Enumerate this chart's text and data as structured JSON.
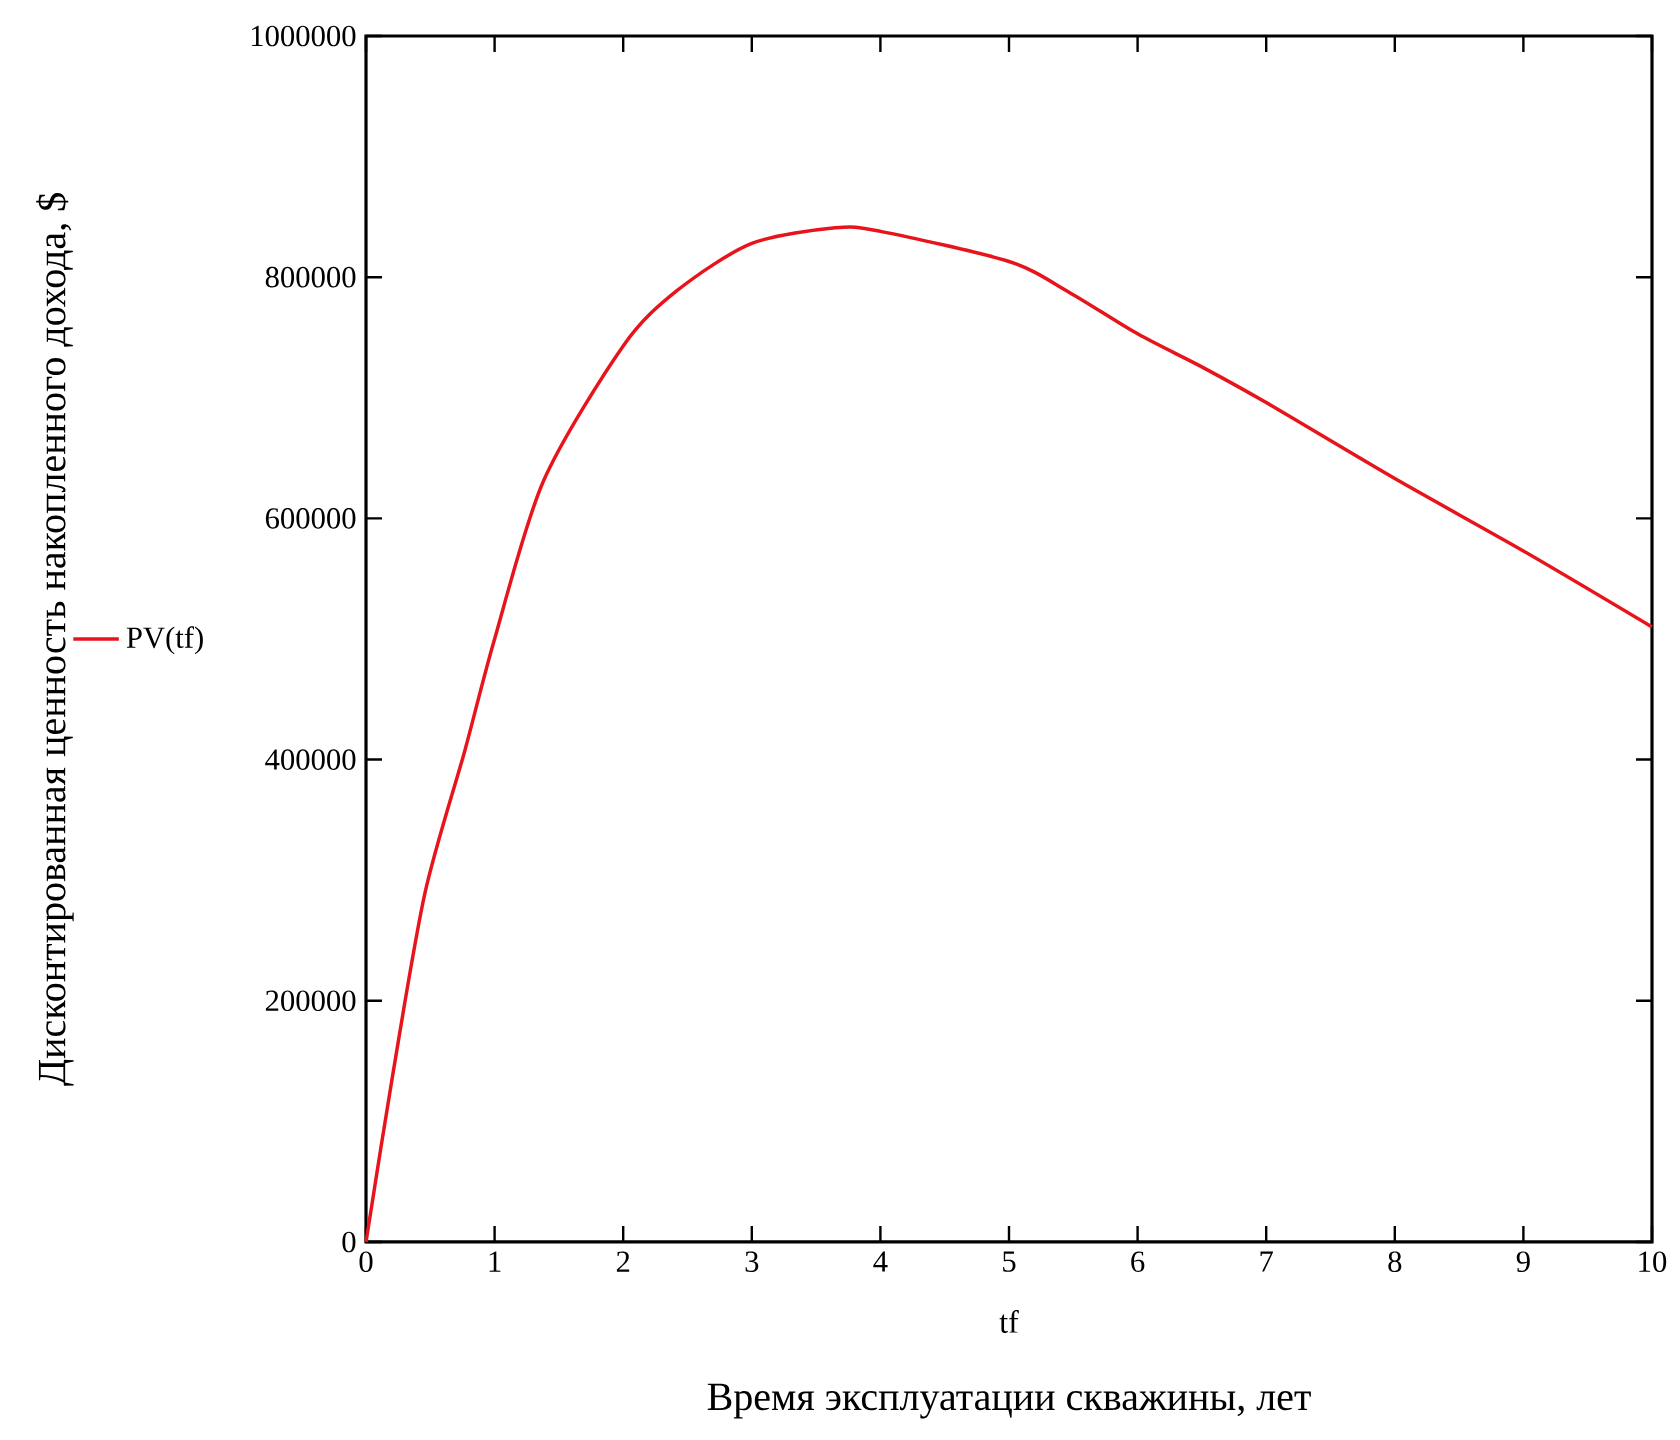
{
  "chart_data": {
    "type": "line",
    "xlabel": "tf",
    "ylabel": "Дисконтированная ценность накопленного дохода, $",
    "annotations": [
      "Время эксплуатации скважины, лет"
    ],
    "x": [
      0,
      0.21,
      0.46,
      0.77,
      1,
      1.38,
      2,
      2.42,
      3,
      3.65,
      4,
      5,
      5.46,
      6,
      6.51,
      7,
      8,
      9,
      10
    ],
    "series": [
      {
        "name": "PV(tf)",
        "color": "#e8141c",
        "values": [
          0,
          140000,
          290000,
          408000,
          500000,
          631000,
          743000,
          789000,
          828000,
          841000,
          838000,
          813000,
          788000,
          753000,
          725000,
          696000,
          633000,
          573000,
          510000
        ]
      }
    ],
    "xlim": [
      0,
      10
    ],
    "ylim": [
      0,
      1000000
    ],
    "xticks": [
      0,
      1,
      2,
      3,
      4,
      5,
      6,
      7,
      8,
      9,
      10
    ],
    "yticks": [
      0,
      200000,
      400000,
      600000,
      800000,
      1000000
    ],
    "legend": "left"
  }
}
